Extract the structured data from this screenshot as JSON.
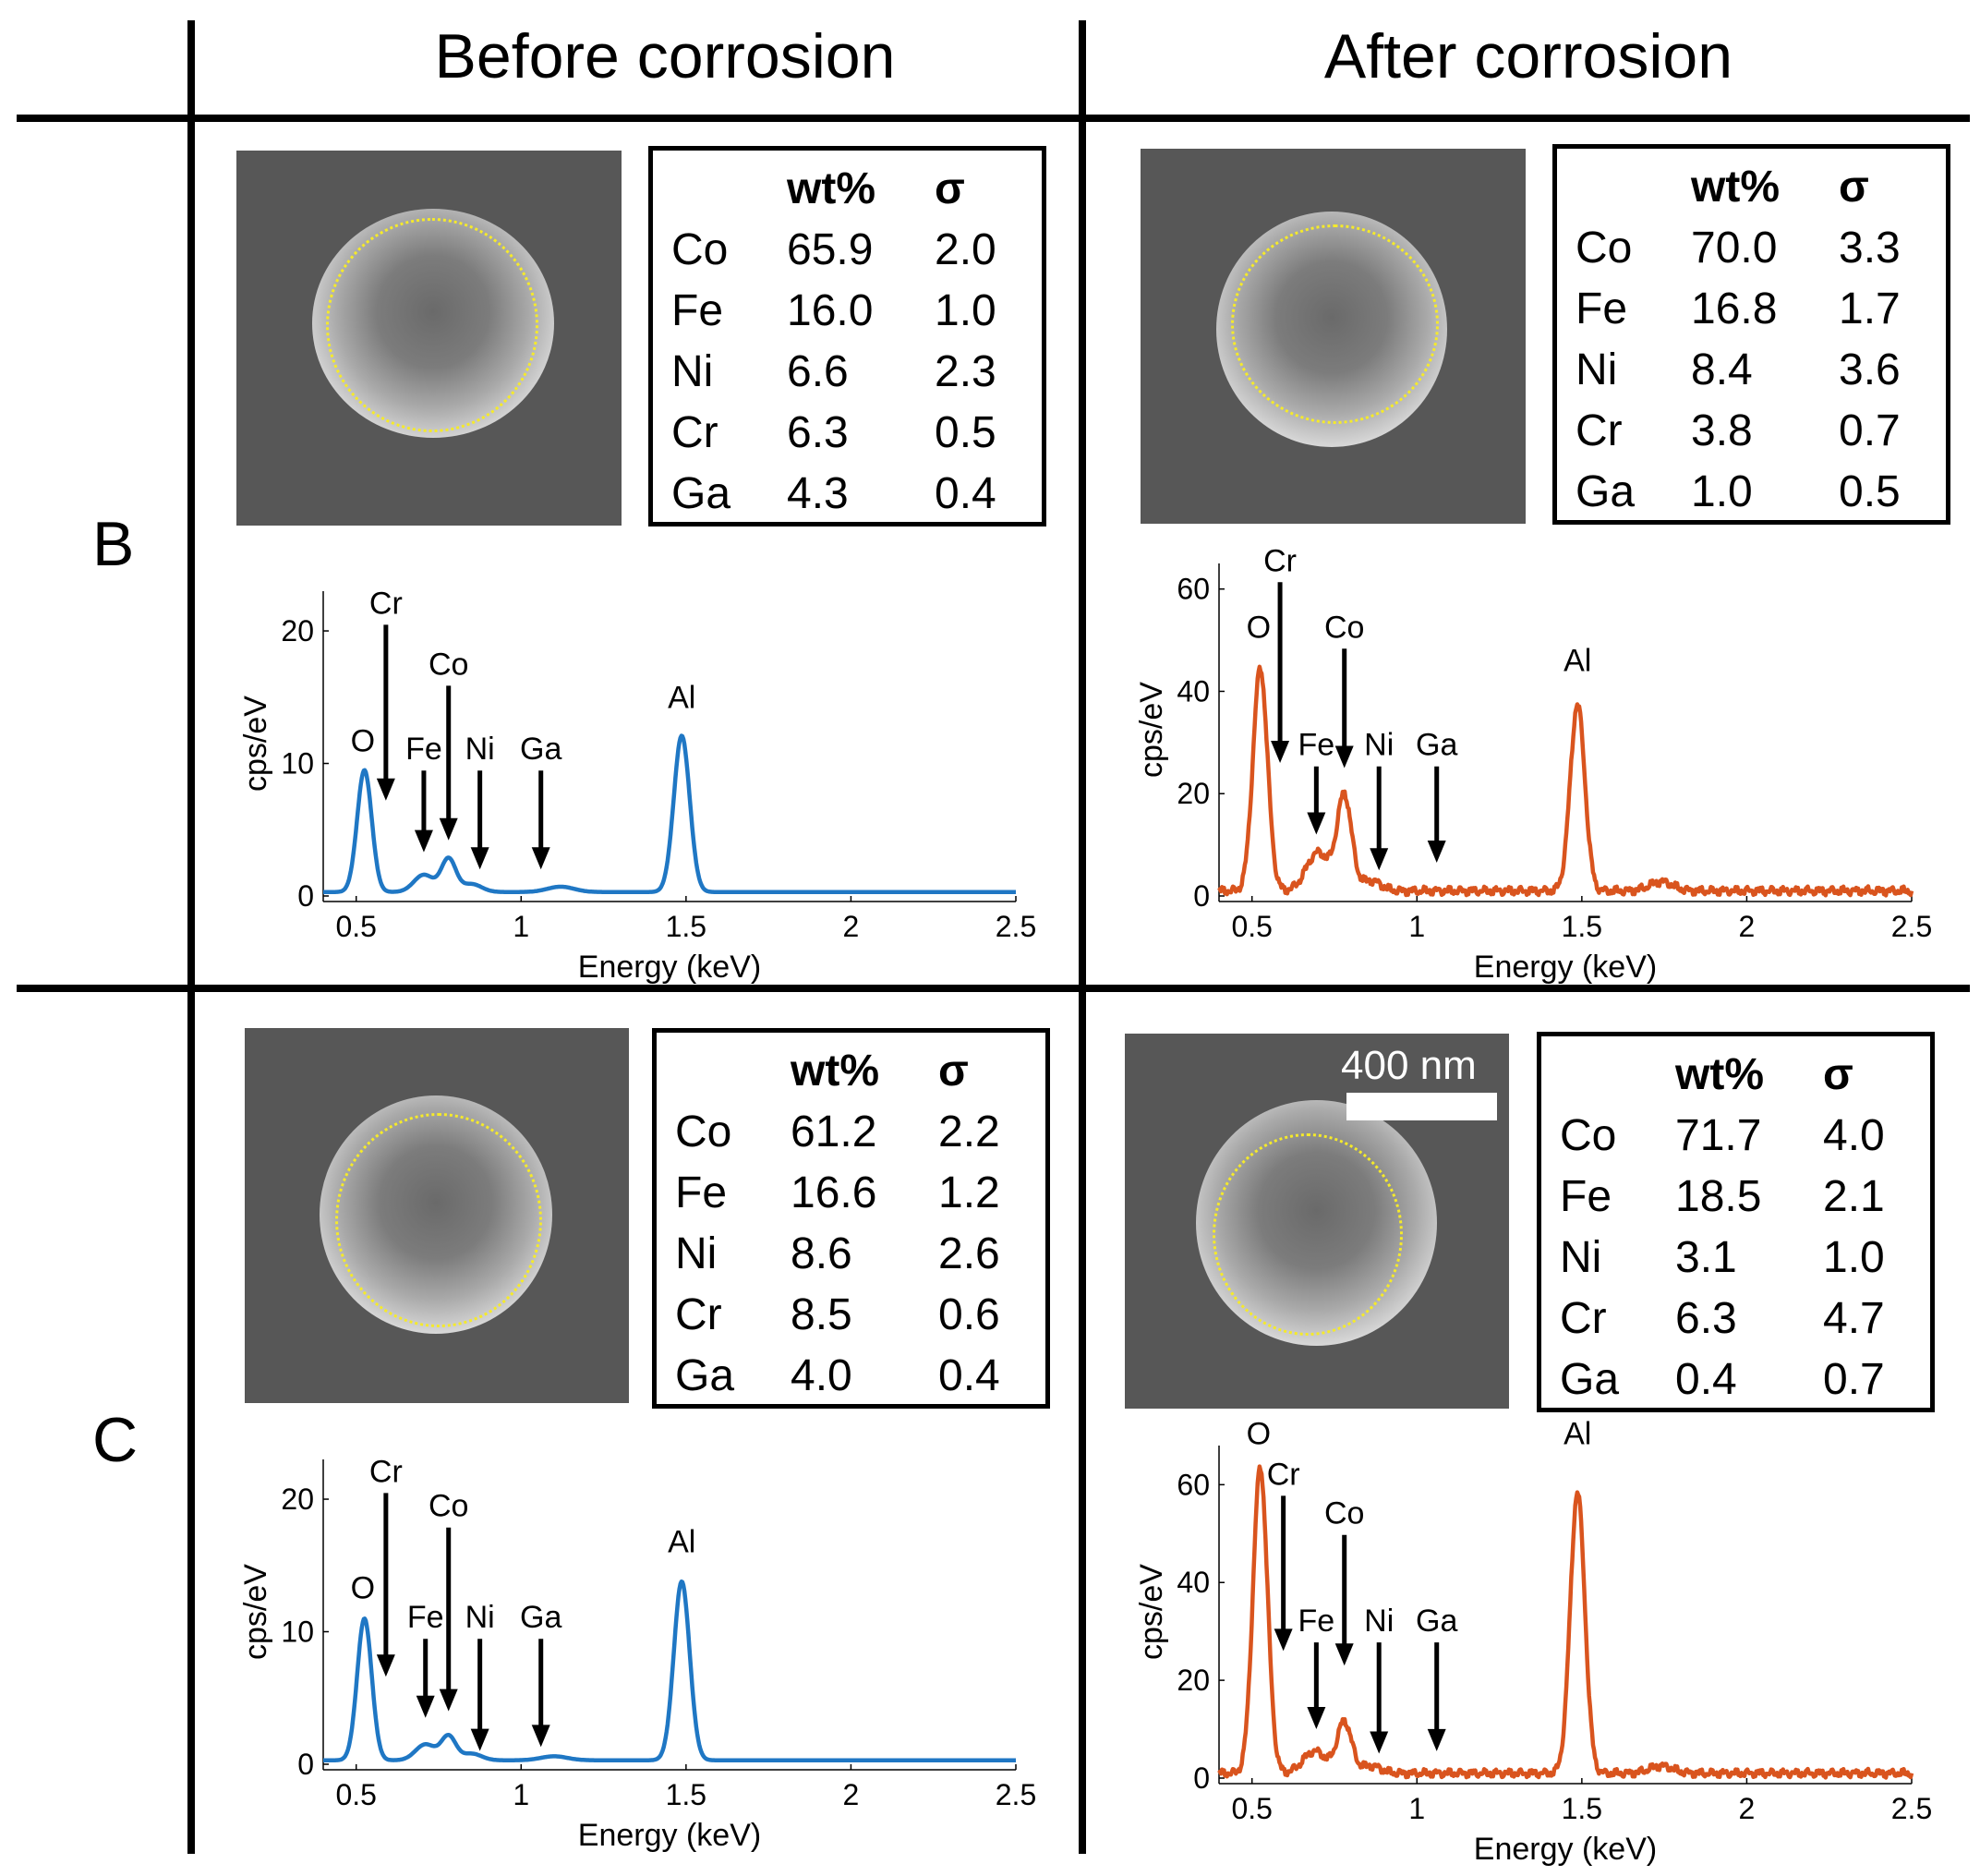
{
  "headers": {
    "before": "Before corrosion",
    "after": "After corrosion"
  },
  "rows": [
    "B",
    "C"
  ],
  "scale_bar": "400 nm",
  "table_header": {
    "element": "",
    "wt": "wt%",
    "sigma": "σ"
  },
  "colors": {
    "before": "#1f77c4",
    "after": "#d9541e",
    "circle": "#f5ea2a"
  },
  "panels": [
    {
      "id": "B-before",
      "table": [
        [
          "Co",
          "65.9",
          "2.0"
        ],
        [
          "Fe",
          "16.0",
          "1.0"
        ],
        [
          "Ni",
          "6.6",
          "2.3"
        ],
        [
          "Cr",
          "6.3",
          "0.5"
        ],
        [
          "Ga",
          "4.3",
          "0.4"
        ]
      ]
    },
    {
      "id": "B-after",
      "table": [
        [
          "Co",
          "70.0",
          "3.3"
        ],
        [
          "Fe",
          "16.8",
          "1.7"
        ],
        [
          "Ni",
          "8.4",
          "3.6"
        ],
        [
          "Cr",
          "3.8",
          "0.7"
        ],
        [
          "Ga",
          "1.0",
          "0.5"
        ]
      ]
    },
    {
      "id": "C-before",
      "table": [
        [
          "Co",
          "61.2",
          "2.2"
        ],
        [
          "Fe",
          "16.6",
          "1.2"
        ],
        [
          "Ni",
          "8.6",
          "2.6"
        ],
        [
          "Cr",
          "8.5",
          "0.6"
        ],
        [
          "Ga",
          "4.0",
          "0.4"
        ]
      ]
    },
    {
      "id": "C-after",
      "table": [
        [
          "Co",
          "71.7",
          "4.0"
        ],
        [
          "Fe",
          "18.5",
          "2.1"
        ],
        [
          "Ni",
          "3.1",
          "1.0"
        ],
        [
          "Cr",
          "6.3",
          "4.7"
        ],
        [
          "Ga",
          "0.4",
          "0.7"
        ]
      ]
    }
  ],
  "chart_data": [
    {
      "panel": "B-before",
      "type": "line",
      "series_color": "before",
      "xlabel": "Energy (keV)",
      "ylabel": "cps/eV",
      "xlim": [
        0.4,
        2.5
      ],
      "ylim": [
        0,
        23
      ],
      "xticks": [
        0.5,
        1,
        1.5,
        2,
        2.5
      ],
      "xtick_labels": [
        "0.5",
        "1",
        "1.5",
        "2",
        "2.5"
      ],
      "yticks": [
        0,
        10,
        20
      ],
      "ytick_labels": [
        "0",
        "10",
        "20"
      ],
      "baseline": 0.3,
      "peaks": [
        {
          "center": 0.525,
          "height": 9.2,
          "width": 0.022
        },
        {
          "center": 0.705,
          "height": 1.3,
          "width": 0.03
        },
        {
          "center": 0.78,
          "height": 2.5,
          "width": 0.022
        },
        {
          "center": 0.85,
          "height": 0.6,
          "width": 0.03
        },
        {
          "center": 1.12,
          "height": 0.4,
          "width": 0.04
        },
        {
          "center": 1.487,
          "height": 11.8,
          "width": 0.024
        }
      ],
      "annotations": [
        {
          "label": "O",
          "energy": 0.52,
          "arrow": false,
          "value": 10.9
        },
        {
          "label": "Cr",
          "energy": 0.59,
          "arrow": true,
          "value": 21.3,
          "tip": 7.2
        },
        {
          "label": "Co",
          "energy": 0.78,
          "arrow": true,
          "value": 16.7,
          "tip": 4.2
        },
        {
          "label": "Fe",
          "energy": 0.705,
          "arrow": true,
          "value": 10.3,
          "tip": 3.3
        },
        {
          "label": "Ni",
          "energy": 0.875,
          "arrow": true,
          "value": 10.3,
          "tip": 2.0
        },
        {
          "label": "Ga",
          "energy": 1.06,
          "arrow": true,
          "value": 10.3,
          "tip": 2.0
        },
        {
          "label": "Al",
          "energy": 1.487,
          "arrow": false,
          "value": 14.2
        }
      ]
    },
    {
      "panel": "B-after",
      "type": "line",
      "series_color": "after",
      "xlabel": "Energy (keV)",
      "ylabel": "cps/eV",
      "xlim": [
        0.4,
        2.5
      ],
      "ylim": [
        0,
        65
      ],
      "xticks": [
        0.5,
        1,
        1.5,
        2,
        2.5
      ],
      "xtick_labels": [
        "0.5",
        "1",
        "1.5",
        "2",
        "2.5"
      ],
      "yticks": [
        0,
        20,
        40,
        60
      ],
      "ytick_labels": [
        "0",
        "20",
        "40",
        "60"
      ],
      "baseline": 1.0,
      "peaks": [
        {
          "center": 0.525,
          "height": 43.5,
          "width": 0.022
        },
        {
          "center": 0.7,
          "height": 7.5,
          "width": 0.035
        },
        {
          "center": 0.78,
          "height": 18.5,
          "width": 0.022
        },
        {
          "center": 0.86,
          "height": 2.0,
          "width": 0.03
        },
        {
          "center": 1.487,
          "height": 36.5,
          "width": 0.022
        },
        {
          "center": 1.74,
          "height": 1.8,
          "width": 0.035
        }
      ],
      "annotations": [
        {
          "label": "O",
          "energy": 0.52,
          "arrow": false,
          "value": 50.5
        },
        {
          "label": "Cr",
          "energy": 0.585,
          "arrow": true,
          "value": 63.5,
          "tip": 26.0
        },
        {
          "label": "Co",
          "energy": 0.78,
          "arrow": true,
          "value": 50.5,
          "tip": 25.0
        },
        {
          "label": "Fe",
          "energy": 0.695,
          "arrow": true,
          "value": 27.5,
          "tip": 12.0
        },
        {
          "label": "Ni",
          "energy": 0.885,
          "arrow": true,
          "value": 27.5,
          "tip": 5.0
        },
        {
          "label": "Ga",
          "energy": 1.06,
          "arrow": true,
          "value": 27.5,
          "tip": 6.5
        },
        {
          "label": "Al",
          "energy": 1.487,
          "arrow": false,
          "value": 44.0
        }
      ]
    },
    {
      "panel": "C-before",
      "type": "line",
      "series_color": "before",
      "xlabel": "Energy (keV)",
      "ylabel": "cps/eV",
      "xlim": [
        0.4,
        2.5
      ],
      "ylim": [
        0,
        23
      ],
      "xticks": [
        0.5,
        1,
        1.5,
        2,
        2.5
      ],
      "xtick_labels": [
        "0.5",
        "1",
        "1.5",
        "2",
        "2.5"
      ],
      "yticks": [
        0,
        10,
        20
      ],
      "ytick_labels": [
        "0",
        "10",
        "20"
      ],
      "baseline": 0.3,
      "peaks": [
        {
          "center": 0.525,
          "height": 10.7,
          "width": 0.022
        },
        {
          "center": 0.71,
          "height": 1.2,
          "width": 0.03
        },
        {
          "center": 0.78,
          "height": 1.8,
          "width": 0.022
        },
        {
          "center": 0.85,
          "height": 0.5,
          "width": 0.03
        },
        {
          "center": 1.1,
          "height": 0.3,
          "width": 0.04
        },
        {
          "center": 1.487,
          "height": 13.5,
          "width": 0.024
        }
      ],
      "annotations": [
        {
          "label": "O",
          "energy": 0.52,
          "arrow": false,
          "value": 12.5
        },
        {
          "label": "Cr",
          "energy": 0.59,
          "arrow": true,
          "value": 21.3,
          "tip": 6.6
        },
        {
          "label": "Co",
          "energy": 0.78,
          "arrow": true,
          "value": 18.7,
          "tip": 4.0
        },
        {
          "label": "Fe",
          "energy": 0.71,
          "arrow": true,
          "value": 10.3,
          "tip": 3.5
        },
        {
          "label": "Ni",
          "energy": 0.875,
          "arrow": true,
          "value": 10.3,
          "tip": 1.0
        },
        {
          "label": "Ga",
          "energy": 1.06,
          "arrow": true,
          "value": 10.3,
          "tip": 1.3
        },
        {
          "label": "Al",
          "energy": 1.487,
          "arrow": false,
          "value": 16.0
        }
      ]
    },
    {
      "panel": "C-after",
      "type": "line",
      "series_color": "after",
      "xlabel": "Energy (keV)",
      "ylabel": "cps/eV",
      "xlim": [
        0.4,
        2.5
      ],
      "ylim": [
        0,
        68
      ],
      "xticks": [
        0.5,
        1,
        1.5,
        2,
        2.5
      ],
      "xtick_labels": [
        "0.5",
        "1",
        "1.5",
        "2",
        "2.5"
      ],
      "yticks": [
        0,
        20,
        40,
        60
      ],
      "ytick_labels": [
        "0",
        "20",
        "40",
        "60"
      ],
      "baseline": 1.0,
      "peaks": [
        {
          "center": 0.525,
          "height": 62.5,
          "width": 0.022
        },
        {
          "center": 0.69,
          "height": 4.5,
          "width": 0.035
        },
        {
          "center": 0.78,
          "height": 10.5,
          "width": 0.022
        },
        {
          "center": 0.86,
          "height": 1.5,
          "width": 0.03
        },
        {
          "center": 1.487,
          "height": 57.5,
          "width": 0.022
        },
        {
          "center": 1.74,
          "height": 1.5,
          "width": 0.035
        }
      ],
      "annotations": [
        {
          "label": "O",
          "energy": 0.52,
          "arrow": false,
          "value": 68.3
        },
        {
          "label": "Cr",
          "energy": 0.595,
          "arrow": true,
          "value": 60.0,
          "tip": 26.0
        },
        {
          "label": "Co",
          "energy": 0.78,
          "arrow": true,
          "value": 52.0,
          "tip": 23.0
        },
        {
          "label": "Fe",
          "energy": 0.695,
          "arrow": true,
          "value": 30.0,
          "tip": 10.0
        },
        {
          "label": "Ni",
          "energy": 0.885,
          "arrow": true,
          "value": 30.0,
          "tip": 5.0
        },
        {
          "label": "Ga",
          "energy": 1.06,
          "arrow": true,
          "value": 30.0,
          "tip": 5.5
        },
        {
          "label": "Al",
          "energy": 1.487,
          "arrow": false,
          "value": 68.3
        }
      ]
    }
  ]
}
